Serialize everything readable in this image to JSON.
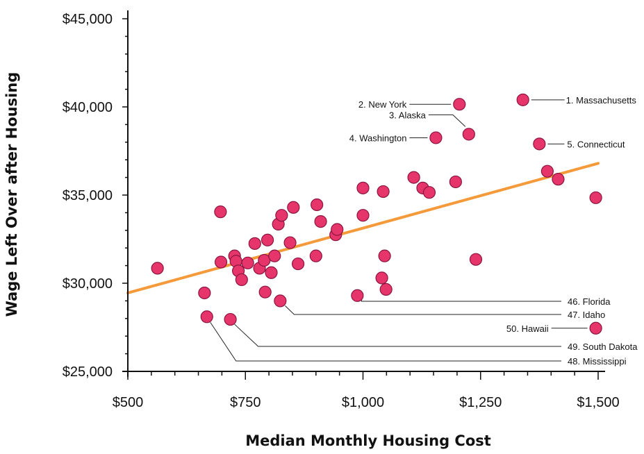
{
  "colors": {
    "point_fill": "#E5356B",
    "point_stroke": "#8C1540",
    "trend": "#F59A3A",
    "axis": "#111111",
    "leader": "#222222"
  },
  "chart_data": {
    "type": "scatter",
    "title": "",
    "xlabel": "Median Monthly Housing Cost",
    "ylabel": "Wage Left Over after Housing",
    "xlim": [
      500,
      1500
    ],
    "ylim": [
      25000,
      45000
    ],
    "x_ticks": [
      500,
      750,
      1000,
      1250,
      1500
    ],
    "x_tick_labels": [
      "$500",
      "$750",
      "$1,000",
      "$1,250",
      "$1,500"
    ],
    "y_ticks": [
      25000,
      30000,
      35000,
      40000,
      45000
    ],
    "y_tick_labels": [
      "$25,000",
      "$30,000",
      "$35,000",
      "$40,000",
      "$45,000"
    ],
    "grid": false,
    "legend": "none",
    "points": [
      {
        "x": 1340,
        "y": 40400,
        "label": "1. Massachusetts"
      },
      {
        "x": 1205,
        "y": 40150,
        "label": "2. New York"
      },
      {
        "x": 1225,
        "y": 38450,
        "label": "3. Alaska"
      },
      {
        "x": 1155,
        "y": 38250,
        "label": "4. Washington"
      },
      {
        "x": 1375,
        "y": 37900,
        "label": "5. Connecticut"
      },
      {
        "x": 988,
        "y": 29300,
        "label": "46. Florida"
      },
      {
        "x": 824,
        "y": 29000,
        "label": "47. Idaho"
      },
      {
        "x": 718,
        "y": 27950,
        "label": "49. South Dakota"
      },
      {
        "x": 668,
        "y": 28100,
        "label": "48. Mississippi"
      },
      {
        "x": 1495,
        "y": 27450,
        "label": "50. Hawaii"
      },
      {
        "x": 563,
        "y": 30850
      },
      {
        "x": 663,
        "y": 29450
      },
      {
        "x": 697,
        "y": 34050
      },
      {
        "x": 698,
        "y": 31200
      },
      {
        "x": 727,
        "y": 31550
      },
      {
        "x": 730,
        "y": 31250
      },
      {
        "x": 735,
        "y": 30700
      },
      {
        "x": 742,
        "y": 30200
      },
      {
        "x": 755,
        "y": 31150
      },
      {
        "x": 770,
        "y": 32250
      },
      {
        "x": 780,
        "y": 30850
      },
      {
        "x": 790,
        "y": 31300
      },
      {
        "x": 792,
        "y": 29500
      },
      {
        "x": 797,
        "y": 32450
      },
      {
        "x": 805,
        "y": 30600
      },
      {
        "x": 812,
        "y": 31550
      },
      {
        "x": 820,
        "y": 33350
      },
      {
        "x": 827,
        "y": 33850
      },
      {
        "x": 845,
        "y": 32300
      },
      {
        "x": 852,
        "y": 34300
      },
      {
        "x": 862,
        "y": 31100
      },
      {
        "x": 900,
        "y": 31550
      },
      {
        "x": 902,
        "y": 34450
      },
      {
        "x": 910,
        "y": 33500
      },
      {
        "x": 942,
        "y": 32750
      },
      {
        "x": 945,
        "y": 33050
      },
      {
        "x": 1000,
        "y": 35400
      },
      {
        "x": 1000,
        "y": 33850
      },
      {
        "x": 1040,
        "y": 30300
      },
      {
        "x": 1043,
        "y": 35200
      },
      {
        "x": 1046,
        "y": 31550
      },
      {
        "x": 1049,
        "y": 29650
      },
      {
        "x": 1108,
        "y": 36000
      },
      {
        "x": 1127,
        "y": 35400
      },
      {
        "x": 1141,
        "y": 35150
      },
      {
        "x": 1197,
        "y": 35750
      },
      {
        "x": 1240,
        "y": 31350
      },
      {
        "x": 1392,
        "y": 36350
      },
      {
        "x": 1415,
        "y": 35900
      },
      {
        "x": 1495,
        "y": 34850
      }
    ],
    "trendline": {
      "x": [
        500,
        1500
      ],
      "y": [
        29450,
        36800
      ]
    }
  }
}
